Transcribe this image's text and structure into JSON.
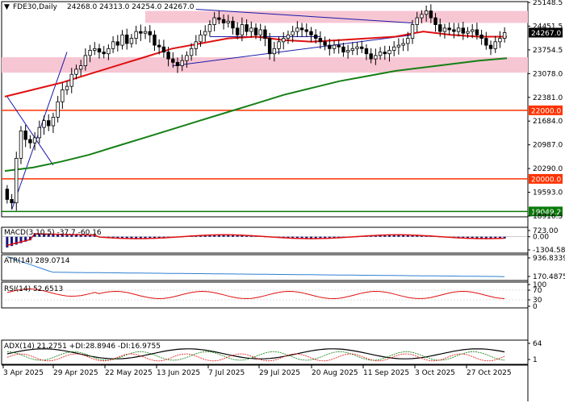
{
  "header": {
    "collapse_glyph": "▼",
    "symbol": "FDE30,Daily",
    "ohlc": "24268.0 24313.0 24254.0 24267.0"
  },
  "colors": {
    "candle": "#000000",
    "ma_fast": "#e01010",
    "ma_slow": "#158015",
    "trendline": "#1a1aa8",
    "zone_fill": "#f7c6d3",
    "level_line": "#ff3300",
    "support_line": "#0a7a0a",
    "macd_hist": "#15157a",
    "macd_signal": "#e01010",
    "atr": "#2f7fd0",
    "rsi": "#e01010",
    "adx": "#000000",
    "adx_minus": "#e01010",
    "adx_plus": "#0a7a0a",
    "price_box": "#000000",
    "level_box": "#ff3300",
    "support_box": "#0a7a0a"
  },
  "chart_data": {
    "type": "candlestick",
    "title": "FDE30,Daily",
    "price_axis": {
      "range": [
        18916.5,
        25148.5
      ],
      "ticks": [
        "25148.5",
        "24451.5",
        "23754.5",
        "23078.0",
        "22381.0",
        "21684.0",
        "20987.0",
        "20290.0",
        "19593.0",
        "18916.5"
      ]
    },
    "dates": [
      "3 Apr 2025",
      "29 Apr 2025",
      "22 May 2025",
      "13 Jun 2025",
      "7 Jul 2025",
      "29 Jul 2025",
      "20 Aug 2025",
      "11 Sep 2025",
      "3 Oct 2025",
      "27 Oct 2025"
    ],
    "last_price": "24267.0",
    "horizontal_levels": [
      {
        "value": 22000.0,
        "label": "22000.0"
      },
      {
        "value": 20000.0,
        "label": "20000.0"
      },
      {
        "value": 19049.2,
        "label": "19049.2"
      }
    ],
    "resistance_zone": [
      24550,
      24900
    ],
    "support_zone": [
      23100,
      23550
    ],
    "closes": [
      19400,
      19300,
      20600,
      21400,
      21150,
      21050,
      21200,
      21500,
      21700,
      21550,
      21800,
      22250,
      22600,
      22700,
      23050,
      23200,
      23300,
      23600,
      23750,
      23800,
      23700,
      23650,
      23800,
      24000,
      23900,
      24200,
      23950,
      24100,
      24300,
      24250,
      24300,
      24200,
      23900,
      23850,
      23700,
      23500,
      23400,
      23300,
      23450,
      23600,
      23800,
      24000,
      24200,
      24300,
      24500,
      24700,
      24650,
      24550,
      24600,
      24400,
      24200,
      24500,
      24300,
      24400,
      24200,
      24350,
      24100,
      23650,
      23800,
      24000,
      24100,
      24200,
      24300,
      24400,
      24350,
      24300,
      24200,
      24100,
      24000,
      23900,
      23800,
      23900,
      23850,
      23700,
      23750,
      23800,
      23850,
      23800,
      23650,
      23500,
      23600,
      23700,
      23650,
      23750,
      23850,
      23900,
      23950,
      24100,
      24500,
      24700,
      24800,
      24900,
      24700,
      24500,
      24300,
      24400,
      24350,
      24300,
      24400,
      24250,
      24300,
      24350,
      24200,
      24100,
      23900,
      23800,
      24000,
      24100,
      24267
    ],
    "ma_fast": [
      22400,
      22600,
      22800,
      23050,
      23300,
      23550,
      23800,
      23950,
      24100,
      24150,
      24050,
      24000,
      24050,
      24100,
      24150,
      24300,
      24200,
      24150,
      24150
    ],
    "ma_slow": [
      20230,
      20330,
      20500,
      20700,
      20950,
      21200,
      21450,
      21700,
      21950,
      22200,
      22450,
      22650,
      22850,
      23000,
      23150,
      23250,
      23350,
      23450,
      23520
    ],
    "indicators": {
      "macd": {
        "label": "MACD(3,10,5) -37.7,-60.16",
        "ticks": [
          "723.00",
          "0.00",
          "-1304.58"
        ],
        "range": [
          -1304.58,
          723.0
        ]
      },
      "atr": {
        "label": "ATR(14) 289.0714",
        "ticks": [
          "936.8339",
          "170.4875"
        ],
        "range": [
          170.4875,
          936.8339
        ]
      },
      "rsi": {
        "label": "RSI(14) 52.6513",
        "ticks": [
          "100",
          "70",
          "30",
          "0"
        ],
        "range": [
          0,
          100
        ]
      },
      "adx": {
        "label": "ADX(14) 21.2751 +DI:28.8946 -DI:16.9755",
        "ticks": [
          "64",
          "1"
        ],
        "range": [
          1,
          64
        ]
      }
    }
  }
}
